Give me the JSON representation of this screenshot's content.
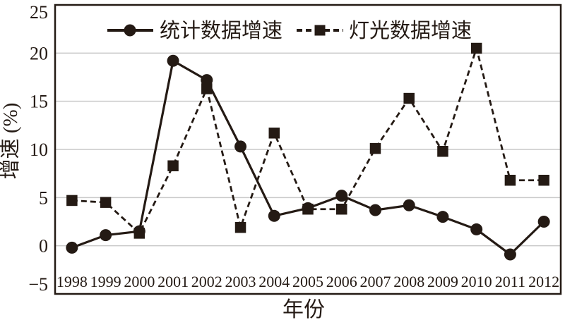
{
  "chart_data": {
    "type": "line",
    "title": "",
    "xlabel": "年份",
    "ylabel": "增速 (%)",
    "ylim": [
      -5,
      25
    ],
    "yticks": [
      25,
      20,
      15,
      10,
      5,
      0,
      -5
    ],
    "ytick_labels": [
      "25",
      "20",
      "15",
      "10",
      "5",
      "0",
      "−5"
    ],
    "categories": [
      "1998",
      "1999",
      "2000",
      "2001",
      "2002",
      "2003",
      "2004",
      "2005",
      "2006",
      "2007",
      "2008",
      "2009",
      "2010",
      "2011",
      "2012"
    ],
    "grid": "horizontal-only",
    "legend_position": "top-inside",
    "series": [
      {
        "name": "统计数据增速",
        "marker": "circle",
        "line_style": "solid",
        "values": [
          -0.2,
          1.1,
          1.5,
          19.2,
          17.2,
          10.3,
          3.1,
          3.9,
          5.2,
          3.7,
          4.2,
          3.0,
          1.7,
          -0.9,
          2.5
        ]
      },
      {
        "name": "灯光数据增速",
        "marker": "square",
        "line_style": "dashed",
        "values": [
          4.7,
          4.5,
          1.3,
          8.3,
          16.3,
          1.9,
          11.7,
          3.8,
          3.8,
          10.1,
          15.3,
          9.8,
          20.5,
          6.8,
          6.8
        ]
      }
    ],
    "colors": {
      "ink": "#241a14",
      "gridline": "#c9c9c9",
      "background": "#ffffff"
    }
  }
}
